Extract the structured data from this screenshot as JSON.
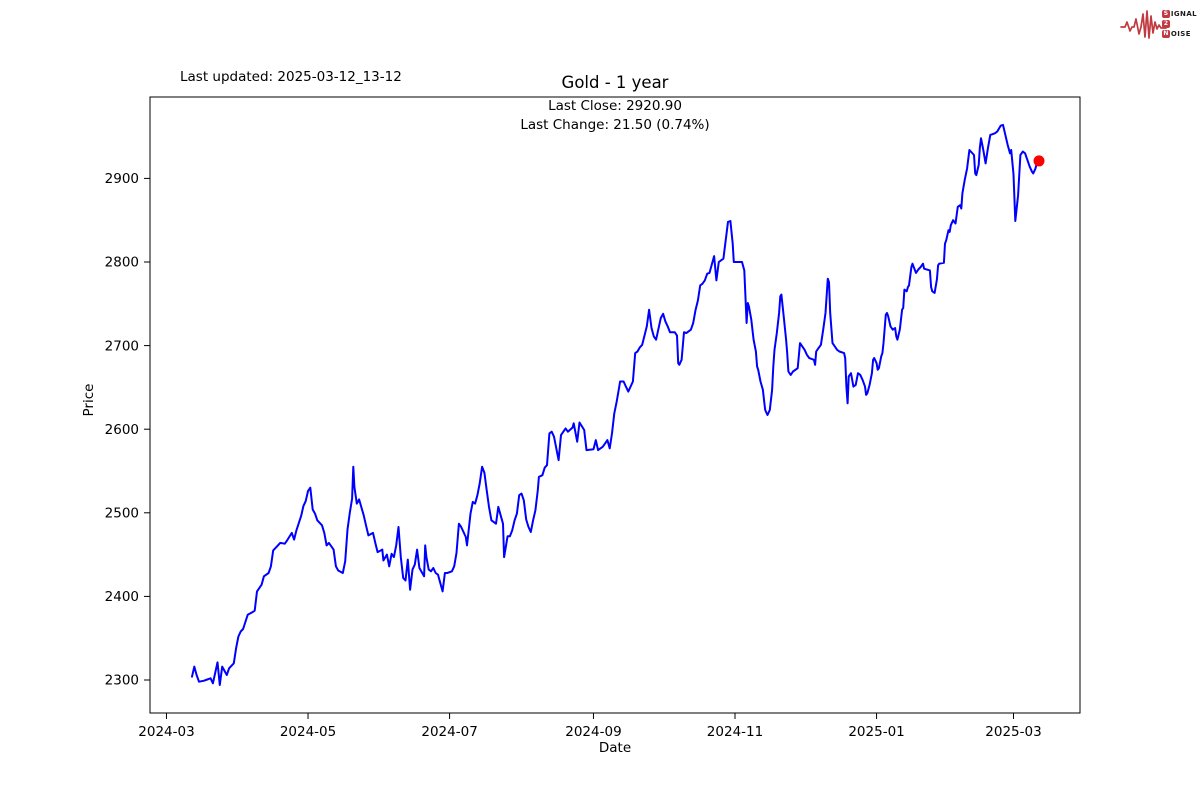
{
  "header": {
    "last_updated": "Last updated: 2025-03-12_13-12"
  },
  "logo": {
    "name": "Signal 2 Noise",
    "accent_color": "#c13a40",
    "line1_badge": "S",
    "line1_word": "IGNAL",
    "line2_badge": "2",
    "line3_badge": "N",
    "line3_word": "OISE"
  },
  "chart_data": {
    "type": "line",
    "title": "Gold - 1 year",
    "subtitle_lines": [
      "Last Close: 2920.90",
      "Last Change: 21.50 (0.74%)"
    ],
    "xlabel": "Date",
    "ylabel": "Price",
    "series_name": "Gold price",
    "line_color": "#0000ff",
    "marker_color": "#ff0000",
    "grid": false,
    "x_start_date": "2024-03-12",
    "x_end_date": "2025-03-12",
    "ylim": [
      2260,
      2997
    ],
    "yticks": [
      2300,
      2400,
      2500,
      2600,
      2700,
      2800,
      2900
    ],
    "xticks": [
      {
        "label": "2024-03",
        "day": -11
      },
      {
        "label": "2024-05",
        "day": 50
      },
      {
        "label": "2024-07",
        "day": 111
      },
      {
        "label": "2024-09",
        "day": 173
      },
      {
        "label": "2024-11",
        "day": 234
      },
      {
        "label": "2025-01",
        "day": 295
      },
      {
        "label": "2025-03",
        "day": 354
      }
    ],
    "last_close": 2920.9,
    "last_change": "21.50 (0.74%)",
    "points": [
      [
        0,
        2304
      ],
      [
        1,
        2316
      ],
      [
        2,
        2306
      ],
      [
        3,
        2298
      ],
      [
        5,
        2299
      ],
      [
        6,
        2300
      ],
      [
        8,
        2302
      ],
      [
        9,
        2296
      ],
      [
        11,
        2321
      ],
      [
        12,
        2294
      ],
      [
        13,
        2316
      ],
      [
        15,
        2306
      ],
      [
        16,
        2314
      ],
      [
        18,
        2320
      ],
      [
        19,
        2338
      ],
      [
        20,
        2352
      ],
      [
        21,
        2358
      ],
      [
        22,
        2361
      ],
      [
        24,
        2378
      ],
      [
        26,
        2381
      ],
      [
        27,
        2383
      ],
      [
        28,
        2406
      ],
      [
        30,
        2414
      ],
      [
        31,
        2424
      ],
      [
        33,
        2428
      ],
      [
        34,
        2436
      ],
      [
        35,
        2455
      ],
      [
        37,
        2461
      ],
      [
        38,
        2464
      ],
      [
        40,
        2463
      ],
      [
        41,
        2467
      ],
      [
        43,
        2476
      ],
      [
        44,
        2468
      ],
      [
        45,
        2479
      ],
      [
        47,
        2496
      ],
      [
        48,
        2508
      ],
      [
        49,
        2514
      ],
      [
        50,
        2526
      ],
      [
        51,
        2530
      ],
      [
        52,
        2504
      ],
      [
        53,
        2499
      ],
      [
        54,
        2491
      ],
      [
        56,
        2485
      ],
      [
        57,
        2476
      ],
      [
        58,
        2461
      ],
      [
        59,
        2464
      ],
      [
        61,
        2456
      ],
      [
        62,
        2436
      ],
      [
        63,
        2431
      ],
      [
        65,
        2428
      ],
      [
        66,
        2442
      ],
      [
        67,
        2480
      ],
      [
        68,
        2500
      ],
      [
        69,
        2517
      ],
      [
        69.5,
        2555
      ],
      [
        70,
        2531
      ],
      [
        71,
        2511
      ],
      [
        72,
        2516
      ],
      [
        74,
        2497
      ],
      [
        75,
        2485
      ],
      [
        76,
        2473
      ],
      [
        78,
        2476
      ],
      [
        79,
        2464
      ],
      [
        80,
        2453
      ],
      [
        82,
        2456
      ],
      [
        82.5,
        2443
      ],
      [
        84,
        2450
      ],
      [
        85,
        2436
      ],
      [
        86,
        2451
      ],
      [
        87,
        2447
      ],
      [
        88,
        2461
      ],
      [
        89,
        2483
      ],
      [
        90,
        2447
      ],
      [
        91,
        2422
      ],
      [
        92,
        2419
      ],
      [
        93,
        2444
      ],
      [
        94,
        2408
      ],
      [
        95,
        2432
      ],
      [
        96,
        2438
      ],
      [
        97,
        2456
      ],
      [
        98,
        2434
      ],
      [
        100,
        2424
      ],
      [
        100.5,
        2461
      ],
      [
        101,
        2447
      ],
      [
        102,
        2432
      ],
      [
        103,
        2430
      ],
      [
        104,
        2434
      ],
      [
        105,
        2428
      ],
      [
        106,
        2426
      ],
      [
        108,
        2406
      ],
      [
        109,
        2428
      ],
      [
        110,
        2428
      ],
      [
        112,
        2430
      ],
      [
        113,
        2436
      ],
      [
        114,
        2452
      ],
      [
        115,
        2487
      ],
      [
        116,
        2483
      ],
      [
        118,
        2471
      ],
      [
        118.5,
        2461
      ],
      [
        119,
        2473
      ],
      [
        120,
        2499
      ],
      [
        121,
        2513
      ],
      [
        122,
        2511
      ],
      [
        123,
        2521
      ],
      [
        124,
        2535
      ],
      [
        125,
        2555
      ],
      [
        126,
        2548
      ],
      [
        127,
        2527
      ],
      [
        128,
        2507
      ],
      [
        129,
        2491
      ],
      [
        131,
        2487
      ],
      [
        132,
        2507
      ],
      [
        134,
        2487
      ],
      [
        134.5,
        2447
      ],
      [
        136,
        2472
      ],
      [
        137,
        2472
      ],
      [
        138,
        2479
      ],
      [
        139,
        2491
      ],
      [
        140,
        2499
      ],
      [
        141,
        2521
      ],
      [
        142,
        2523
      ],
      [
        143,
        2515
      ],
      [
        144,
        2492
      ],
      [
        145,
        2483
      ],
      [
        146,
        2477
      ],
      [
        147,
        2491
      ],
      [
        148,
        2503
      ],
      [
        149,
        2527
      ],
      [
        149.5,
        2543
      ],
      [
        151,
        2545
      ],
      [
        152,
        2554
      ],
      [
        153,
        2557
      ],
      [
        154,
        2595
      ],
      [
        155,
        2597
      ],
      [
        156,
        2591
      ],
      [
        158,
        2563
      ],
      [
        159,
        2593
      ],
      [
        161,
        2601
      ],
      [
        162,
        2597
      ],
      [
        164,
        2602
      ],
      [
        164.5,
        2607
      ],
      [
        166,
        2585
      ],
      [
        167,
        2608
      ],
      [
        169,
        2599
      ],
      [
        170,
        2575
      ],
      [
        173,
        2576
      ],
      [
        174,
        2587
      ],
      [
        175,
        2575
      ],
      [
        177,
        2579
      ],
      [
        178,
        2583
      ],
      [
        179,
        2587
      ],
      [
        180,
        2577
      ],
      [
        181,
        2595
      ],
      [
        182,
        2619
      ],
      [
        183,
        2633
      ],
      [
        184,
        2649
      ],
      [
        184.5,
        2657
      ],
      [
        186,
        2657
      ],
      [
        187,
        2651
      ],
      [
        188,
        2645
      ],
      [
        190,
        2657
      ],
      [
        191,
        2691
      ],
      [
        192,
        2693
      ],
      [
        193,
        2698
      ],
      [
        194,
        2701
      ],
      [
        196,
        2723
      ],
      [
        197,
        2743
      ],
      [
        198,
        2721
      ],
      [
        199,
        2711
      ],
      [
        200,
        2707
      ],
      [
        202,
        2733
      ],
      [
        203,
        2738
      ],
      [
        204,
        2729
      ],
      [
        205,
        2723
      ],
      [
        206,
        2716
      ],
      [
        208,
        2716
      ],
      [
        209,
        2712
      ],
      [
        209.5,
        2679
      ],
      [
        210,
        2677
      ],
      [
        211,
        2683
      ],
      [
        212,
        2716
      ],
      [
        213,
        2715
      ],
      [
        215,
        2719
      ],
      [
        216,
        2727
      ],
      [
        217,
        2743
      ],
      [
        218,
        2754
      ],
      [
        219,
        2772
      ],
      [
        220,
        2774
      ],
      [
        221,
        2778
      ],
      [
        222,
        2786
      ],
      [
        223,
        2787
      ],
      [
        225,
        2807
      ],
      [
        226,
        2778
      ],
      [
        227,
        2800
      ],
      [
        228,
        2802
      ],
      [
        229,
        2804
      ],
      [
        231,
        2848
      ],
      [
        232,
        2849
      ],
      [
        233,
        2822
      ],
      [
        233.5,
        2800
      ],
      [
        235,
        2800
      ],
      [
        237,
        2800
      ],
      [
        238,
        2790
      ],
      [
        239,
        2727
      ],
      [
        239.5,
        2751
      ],
      [
        240,
        2747
      ],
      [
        241,
        2731
      ],
      [
        242,
        2707
      ],
      [
        243,
        2693
      ],
      [
        243.5,
        2675
      ],
      [
        244,
        2671
      ],
      [
        245,
        2657
      ],
      [
        246,
        2647
      ],
      [
        246.5,
        2635
      ],
      [
        247,
        2623
      ],
      [
        248,
        2617
      ],
      [
        249,
        2623
      ],
      [
        250,
        2647
      ],
      [
        250.5,
        2675
      ],
      [
        251,
        2695
      ],
      [
        252,
        2715
      ],
      [
        253,
        2739
      ],
      [
        253.5,
        2759
      ],
      [
        254,
        2761
      ],
      [
        255,
        2735
      ],
      [
        256,
        2707
      ],
      [
        256.5,
        2691
      ],
      [
        257,
        2669
      ],
      [
        258,
        2665
      ],
      [
        259,
        2669
      ],
      [
        261,
        2673
      ],
      [
        262,
        2703
      ],
      [
        263,
        2699
      ],
      [
        264,
        2695
      ],
      [
        265,
        2689
      ],
      [
        266,
        2685
      ],
      [
        268,
        2683
      ],
      [
        268.5,
        2677
      ],
      [
        269,
        2693
      ],
      [
        270,
        2697
      ],
      [
        271,
        2701
      ],
      [
        272,
        2719
      ],
      [
        273,
        2739
      ],
      [
        274,
        2780
      ],
      [
        274.5,
        2776
      ],
      [
        275,
        2739
      ],
      [
        276,
        2703
      ],
      [
        277,
        2699
      ],
      [
        278,
        2695
      ],
      [
        279,
        2693
      ],
      [
        281,
        2691
      ],
      [
        281.5,
        2685
      ],
      [
        282,
        2651
      ],
      [
        282.5,
        2631
      ],
      [
        283,
        2663
      ],
      [
        284,
        2667
      ],
      [
        284.5,
        2659
      ],
      [
        285,
        2651
      ],
      [
        286,
        2653
      ],
      [
        287,
        2667
      ],
      [
        288,
        2665
      ],
      [
        289,
        2659
      ],
      [
        290,
        2651
      ],
      [
        290.5,
        2641
      ],
      [
        291,
        2643
      ],
      [
        292,
        2653
      ],
      [
        293,
        2667
      ],
      [
        293.5,
        2683
      ],
      [
        294,
        2685
      ],
      [
        295,
        2679
      ],
      [
        295.5,
        2671
      ],
      [
        296,
        2673
      ],
      [
        297,
        2687
      ],
      [
        297.5,
        2691
      ],
      [
        298,
        2703
      ],
      [
        299,
        2737
      ],
      [
        299.5,
        2739
      ],
      [
        300,
        2735
      ],
      [
        301,
        2723
      ],
      [
        302,
        2719
      ],
      [
        303,
        2721
      ],
      [
        303.5,
        2711
      ],
      [
        304,
        2707
      ],
      [
        305,
        2719
      ],
      [
        306,
        2743
      ],
      [
        306.5,
        2745
      ],
      [
        307,
        2767
      ],
      [
        308,
        2765
      ],
      [
        308.5,
        2770
      ],
      [
        309,
        2772
      ],
      [
        310,
        2794
      ],
      [
        310.5,
        2798
      ],
      [
        311,
        2794
      ],
      [
        312,
        2787
      ],
      [
        313,
        2791
      ],
      [
        314,
        2794
      ],
      [
        315,
        2798
      ],
      [
        315.5,
        2792
      ],
      [
        318,
        2790
      ],
      [
        318.5,
        2770
      ],
      [
        319,
        2765
      ],
      [
        320,
        2763
      ],
      [
        321,
        2779
      ],
      [
        321.5,
        2796
      ],
      [
        322,
        2798
      ],
      [
        324,
        2799
      ],
      [
        324.5,
        2822
      ],
      [
        325,
        2826
      ],
      [
        326,
        2838
      ],
      [
        326.5,
        2836
      ],
      [
        327,
        2844
      ],
      [
        328,
        2850
      ],
      [
        329,
        2846
      ],
      [
        330,
        2866
      ],
      [
        331,
        2868
      ],
      [
        331.5,
        2864
      ],
      [
        332,
        2882
      ],
      [
        333,
        2898
      ],
      [
        334,
        2912
      ],
      [
        335,
        2934
      ],
      [
        337,
        2928
      ],
      [
        337.5,
        2906
      ],
      [
        338,
        2904
      ],
      [
        339,
        2916
      ],
      [
        339.5,
        2936
      ],
      [
        340,
        2948
      ],
      [
        341,
        2934
      ],
      [
        342,
        2918
      ],
      [
        343,
        2936
      ],
      [
        344,
        2952
      ],
      [
        346,
        2954
      ],
      [
        347,
        2956
      ],
      [
        348.5,
        2963
      ],
      [
        349.5,
        2964
      ],
      [
        351.5,
        2940
      ],
      [
        352.5,
        2930
      ],
      [
        353,
        2934
      ],
      [
        354,
        2905
      ],
      [
        354.8,
        2849
      ],
      [
        356,
        2880
      ],
      [
        357,
        2928
      ],
      [
        358,
        2932
      ],
      [
        359,
        2930
      ],
      [
        360,
        2922
      ],
      [
        361,
        2914
      ],
      [
        362,
        2908
      ],
      [
        362.5,
        2906
      ],
      [
        363.5,
        2912
      ],
      [
        364,
        2918
      ],
      [
        364.5,
        2920
      ],
      [
        365,
        2920.9
      ]
    ]
  }
}
